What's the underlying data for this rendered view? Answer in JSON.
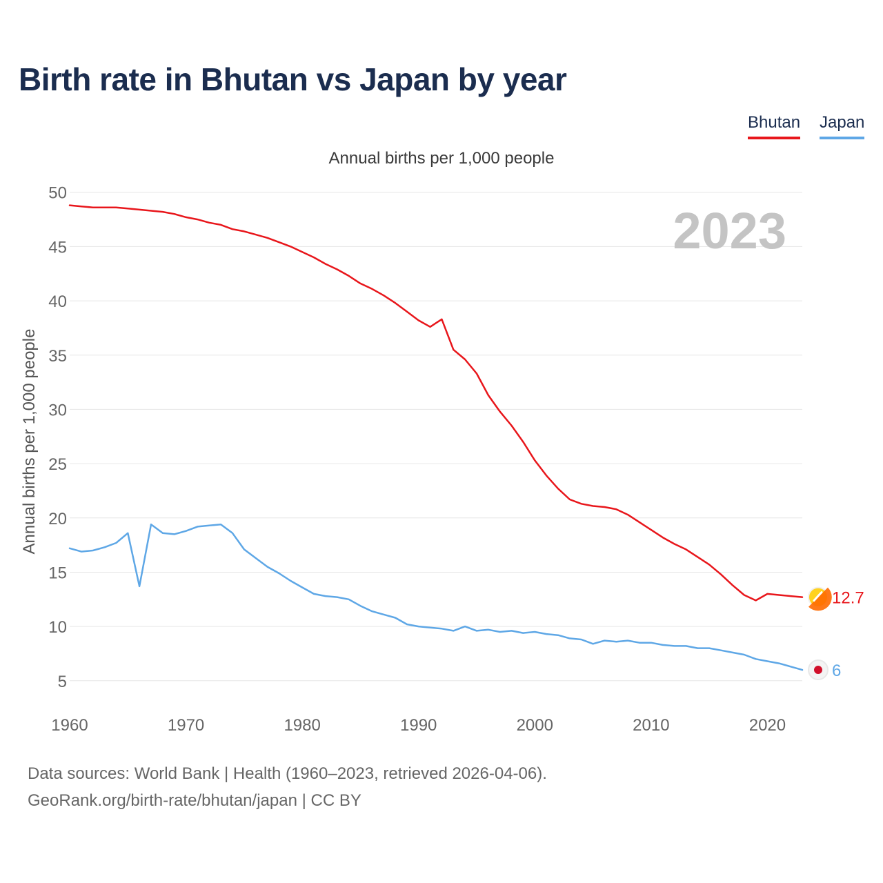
{
  "title": "Birth rate in Bhutan vs Japan by year",
  "legend": [
    {
      "name": "Bhutan",
      "color": "#e8161b"
    },
    {
      "name": "Japan",
      "color": "#5ea7e6"
    }
  ],
  "footer": {
    "line1": "Data sources: World Bank | Health (1960–2023, retrieved 2026-04-06).",
    "line2": "GeoRank.org/birth-rate/bhutan/japan | CC BY"
  },
  "chart_data": {
    "type": "line",
    "title": "Birth rate in Bhutan vs Japan by year",
    "subtitle": "Annual births per 1,000 people",
    "ylabel": "Annual births per 1,000 people",
    "xlabel": "",
    "year_watermark": "2023",
    "xlim": [
      1960,
      2023
    ],
    "ylim": [
      2,
      51
    ],
    "x_ticks": [
      1960,
      1970,
      1980,
      1990,
      2000,
      2010,
      2020
    ],
    "y_ticks": [
      5,
      10,
      15,
      20,
      25,
      30,
      35,
      40,
      45,
      50
    ],
    "grid": true,
    "legend_position": "top-right",
    "x": [
      1960,
      1961,
      1962,
      1963,
      1964,
      1965,
      1966,
      1967,
      1968,
      1969,
      1970,
      1971,
      1972,
      1973,
      1974,
      1975,
      1976,
      1977,
      1978,
      1979,
      1980,
      1981,
      1982,
      1983,
      1984,
      1985,
      1986,
      1987,
      1988,
      1989,
      1990,
      1991,
      1992,
      1993,
      1994,
      1995,
      1996,
      1997,
      1998,
      1999,
      2000,
      2001,
      2002,
      2003,
      2004,
      2005,
      2006,
      2007,
      2008,
      2009,
      2010,
      2011,
      2012,
      2013,
      2014,
      2015,
      2016,
      2017,
      2018,
      2019,
      2020,
      2021,
      2022,
      2023
    ],
    "series": [
      {
        "name": "Bhutan",
        "color": "#e8161b",
        "end_label": "12.7",
        "values": [
          48.8,
          48.7,
          48.6,
          48.6,
          48.6,
          48.5,
          48.4,
          48.3,
          48.2,
          48.0,
          47.7,
          47.5,
          47.2,
          47.0,
          46.6,
          46.4,
          46.1,
          45.8,
          45.4,
          45.0,
          44.5,
          44.0,
          43.4,
          42.9,
          42.3,
          41.6,
          41.1,
          40.5,
          39.8,
          39.0,
          38.2,
          37.6,
          38.3,
          35.5,
          34.6,
          33.3,
          31.3,
          29.8,
          28.5,
          27.0,
          25.3,
          23.9,
          22.7,
          21.7,
          21.3,
          21.1,
          21.0,
          20.8,
          20.3,
          19.6,
          18.9,
          18.2,
          17.6,
          17.1,
          16.4,
          15.7,
          14.8,
          13.8,
          12.9,
          12.4,
          13.0,
          12.9,
          12.8,
          12.7
        ]
      },
      {
        "name": "Japan",
        "color": "#5ea7e6",
        "end_label": "6",
        "values": [
          17.2,
          16.9,
          17.0,
          17.3,
          17.7,
          18.6,
          13.7,
          19.4,
          18.6,
          18.5,
          18.8,
          19.2,
          19.3,
          19.4,
          18.6,
          17.1,
          16.3,
          15.5,
          14.9,
          14.2,
          13.6,
          13.0,
          12.8,
          12.7,
          12.5,
          11.9,
          11.4,
          11.1,
          10.8,
          10.2,
          10.0,
          9.9,
          9.8,
          9.6,
          10.0,
          9.6,
          9.7,
          9.5,
          9.6,
          9.4,
          9.5,
          9.3,
          9.2,
          8.9,
          8.8,
          8.4,
          8.7,
          8.6,
          8.7,
          8.5,
          8.5,
          8.3,
          8.2,
          8.2,
          8.0,
          8.0,
          7.8,
          7.6,
          7.4,
          7.0,
          6.8,
          6.6,
          6.3,
          6.0
        ]
      }
    ]
  }
}
